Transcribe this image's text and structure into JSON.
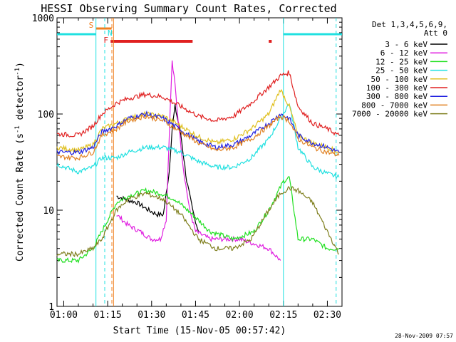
{
  "chart_data": {
    "type": "line",
    "title": "HESSI Observing Summary Count Rates, Corrected",
    "xlabel": "Start Time (15-Nov-05 00:57:42)",
    "ylabel_main": "Corrected Count Rate (s",
    "ylabel_sup1": "-1",
    "ylabel_mid": " detector",
    "ylabel_sup2": "-1",
    "ylabel_end": ")",
    "ylog": true,
    "ylim": [
      1,
      1000
    ],
    "xlim": [
      "00:57:42",
      "02:35:00"
    ],
    "x_ticks": [
      "01:00",
      "01:15",
      "01:30",
      "01:45",
      "02:00",
      "02:15",
      "02:30"
    ],
    "y_ticks": [
      "1",
      "10",
      "100",
      "1000"
    ],
    "legend_title_line1": "Det 1,3,4,5,6,9,",
    "legend_title_line2": "Att 0",
    "legend_position": "right",
    "timestamp": "28-Nov-2009 07:57",
    "flag_markers": [
      {
        "label": "S",
        "color": "#f08020",
        "time": "01:13"
      },
      {
        "label": "N",
        "color": "#20e0e0",
        "time": "01:15"
      },
      {
        "label": "F",
        "color": "#e02020",
        "time": "01:16"
      }
    ],
    "series": [
      {
        "name": "3 - 6 keV",
        "color": "#000000",
        "x": [
          "01:18",
          "01:21",
          "01:25",
          "01:29",
          "01:32",
          "01:34",
          "01:36",
          "01:37",
          "01:38",
          "01:40",
          "01:42",
          "01:44",
          "01:46"
        ],
        "y": [
          14,
          13,
          12,
          10,
          9,
          9,
          25,
          70,
          120,
          60,
          20,
          10,
          6
        ]
      },
      {
        "name": "6 - 12 keV",
        "color": "#e020e0",
        "x": [
          "01:18",
          "01:22",
          "01:26",
          "01:30",
          "01:33",
          "01:35",
          "01:36",
          "01:37",
          "01:38",
          "01:39",
          "01:41",
          "01:43",
          "01:45",
          "01:50",
          "02:00",
          "02:10",
          "02:14"
        ],
        "y": [
          9,
          7,
          6,
          5,
          5,
          8,
          60,
          350,
          200,
          90,
          25,
          10,
          6,
          5,
          5,
          4,
          3
        ]
      },
      {
        "name": "12 - 25 keV",
        "color": "#20e020",
        "x": [
          "00:57:42",
          "01:05",
          "01:10",
          "01:13",
          "01:18",
          "01:22",
          "01:28",
          "01:33",
          "01:38",
          "01:44",
          "01:50",
          "01:58",
          "02:05",
          "02:10",
          "02:15",
          "02:17",
          "02:20",
          "02:25",
          "02:30",
          "02:34"
        ],
        "y": [
          3,
          3,
          4,
          6,
          12,
          14,
          16,
          15,
          13,
          9,
          6,
          5,
          6,
          10,
          20,
          22,
          5,
          5,
          4,
          4
        ]
      },
      {
        "name": "25 - 50 keV",
        "color": "#20e0e0",
        "x": [
          "00:57:42",
          "01:05",
          "01:10",
          "01:13",
          "01:18",
          "01:22",
          "01:28",
          "01:34",
          "01:40",
          "01:46",
          "01:52",
          "01:58",
          "02:04",
          "02:10",
          "02:14",
          "02:17",
          "02:20",
          "02:25",
          "02:30",
          "02:34"
        ],
        "y": [
          30,
          25,
          28,
          35,
          35,
          40,
          45,
          45,
          40,
          32,
          28,
          28,
          35,
          55,
          90,
          130,
          45,
          28,
          24,
          22
        ]
      },
      {
        "name": "50 - 100 keV",
        "color": "#e0c020",
        "x": [
          "00:57:42",
          "01:05",
          "01:10",
          "01:13",
          "01:18",
          "01:22",
          "01:28",
          "01:34",
          "01:40",
          "01:46",
          "01:52",
          "01:58",
          "02:04",
          "02:10",
          "02:14",
          "02:17",
          "02:20",
          "02:25",
          "02:30",
          "02:34"
        ],
        "y": [
          45,
          42,
          48,
          70,
          80,
          90,
          100,
          95,
          75,
          58,
          50,
          55,
          70,
          100,
          180,
          120,
          60,
          50,
          45,
          40
        ]
      },
      {
        "name": "100 - 300 keV",
        "color": "#e02020",
        "x": [
          "00:57:42",
          "01:05",
          "01:10",
          "01:13",
          "01:18",
          "01:22",
          "01:28",
          "01:34",
          "01:40",
          "01:46",
          "01:52",
          "01:58",
          "02:04",
          "02:10",
          "02:14",
          "02:17",
          "02:20",
          "02:25",
          "02:30",
          "02:34"
        ],
        "y": [
          62,
          60,
          75,
          100,
          130,
          145,
          160,
          150,
          120,
          95,
          85,
          95,
          130,
          190,
          250,
          270,
          120,
          80,
          70,
          60
        ]
      },
      {
        "name": "300 - 800 keV",
        "color": "#2020e0",
        "x": [
          "00:57:42",
          "01:05",
          "01:10",
          "01:13",
          "01:18",
          "01:22",
          "01:28",
          "01:34",
          "01:40",
          "01:46",
          "01:52",
          "01:58",
          "02:04",
          "02:10",
          "02:14",
          "02:17",
          "02:20",
          "02:25",
          "02:30",
          "02:34"
        ],
        "y": [
          40,
          40,
          45,
          65,
          75,
          90,
          100,
          90,
          68,
          52,
          45,
          48,
          60,
          80,
          100,
          90,
          60,
          50,
          45,
          40
        ]
      },
      {
        "name": "800 - 7000 keV",
        "color": "#e08020",
        "x": [
          "00:57:42",
          "01:05",
          "01:10",
          "01:13",
          "01:18",
          "01:22",
          "01:28",
          "01:34",
          "01:40",
          "01:46",
          "01:52",
          "01:58",
          "02:04",
          "02:10",
          "02:14",
          "02:17",
          "02:20",
          "02:25",
          "02:30",
          "02:34"
        ],
        "y": [
          36,
          35,
          40,
          60,
          70,
          85,
          95,
          85,
          65,
          50,
          42,
          45,
          55,
          75,
          95,
          85,
          55,
          45,
          40,
          37
        ]
      },
      {
        "name": "7000 - 20000 keV",
        "color": "#808020",
        "x": [
          "00:57:42",
          "01:05",
          "01:10",
          "01:13",
          "01:18",
          "01:22",
          "01:28",
          "01:34",
          "01:40",
          "01:46",
          "01:52",
          "01:58",
          "02:04",
          "02:10",
          "02:14",
          "02:17",
          "02:20",
          "02:25",
          "02:30",
          "02:34"
        ],
        "y": [
          3.5,
          3.5,
          4,
          5,
          10,
          13,
          15,
          13,
          9,
          5,
          4,
          4,
          5,
          10,
          15,
          17,
          16,
          12,
          6,
          3.5
        ]
      }
    ]
  }
}
